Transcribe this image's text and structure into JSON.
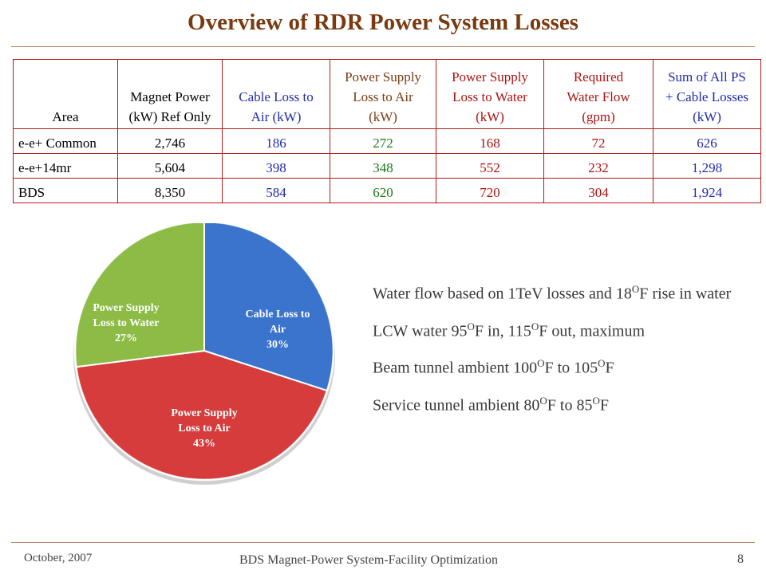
{
  "slide": {
    "title": "Overview of RDR Power System Losses",
    "footer_left": "October, 2007",
    "footer_center": "BDS Magnet-Power System-Facility Optimization",
    "page_number": "8"
  },
  "table": {
    "headers": [
      "Area",
      "Magnet Power (kW) Ref Only",
      "Cable Loss to Air (kW)",
      "Power Supply Loss to Air (kW)",
      "Power Supply Loss to Water (kW)",
      "Required Water Flow (gpm)",
      "Sum of All PS + Cable Losses (kW)"
    ],
    "header_lines": [
      [
        "Area"
      ],
      [
        "Magnet Power",
        "(kW) Ref Only"
      ],
      [
        "Cable Loss to",
        "Air (kW)"
      ],
      [
        "Power Supply",
        "Loss to Air",
        "(kW)"
      ],
      [
        "Power Supply",
        "Loss to Water",
        "(kW)"
      ],
      [
        "Required",
        "Water Flow",
        "(gpm)"
      ],
      [
        "Sum of All PS",
        "+ Cable Losses",
        "(kW)"
      ]
    ],
    "rows": [
      [
        "e-e+ Common",
        "2,746",
        "186",
        "272",
        "168",
        "72",
        "626"
      ],
      [
        "e-e+14mr",
        "5,604",
        "398",
        "348",
        "552",
        "232",
        "1,298"
      ],
      [
        "BDS",
        "8,350",
        "584",
        "620",
        "720",
        "304",
        "1,924"
      ]
    ],
    "column_colors": [
      "#000000",
      "#000000",
      "#1f2ab0",
      "#1a7a1a",
      "#b01010",
      "#b01010",
      "#1f2ab0"
    ]
  },
  "chart_data": {
    "type": "pie",
    "slices": [
      {
        "label_lines": [
          "Cable Loss to",
          "Air",
          "30%"
        ],
        "name": "Cable Loss to Air",
        "value": 30,
        "color": "#3a74cc"
      },
      {
        "label_lines": [
          "Power Supply",
          "Loss to Air",
          "43%"
        ],
        "name": "Power Supply Loss to Air",
        "value": 43,
        "color": "#d63c3c"
      },
      {
        "label_lines": [
          "Power Supply",
          "Loss to Water",
          "27%"
        ],
        "name": "Power Supply Loss to Water",
        "value": 27,
        "color": "#8cbc45"
      }
    ]
  },
  "notes": [
    {
      "parts": [
        "Water flow based on 1TeV losses and 18",
        "O",
        "F rise in water"
      ]
    },
    {
      "parts": [
        "LCW water 95",
        "O",
        "F in, 115",
        "O",
        "F out, maximum"
      ]
    },
    {
      "parts": [
        "Beam tunnel ambient 100",
        "O",
        "F to 105",
        "O",
        "F"
      ]
    },
    {
      "parts": [
        "Service tunnel ambient 80",
        "O",
        "F to 85",
        "O",
        "F"
      ]
    }
  ]
}
